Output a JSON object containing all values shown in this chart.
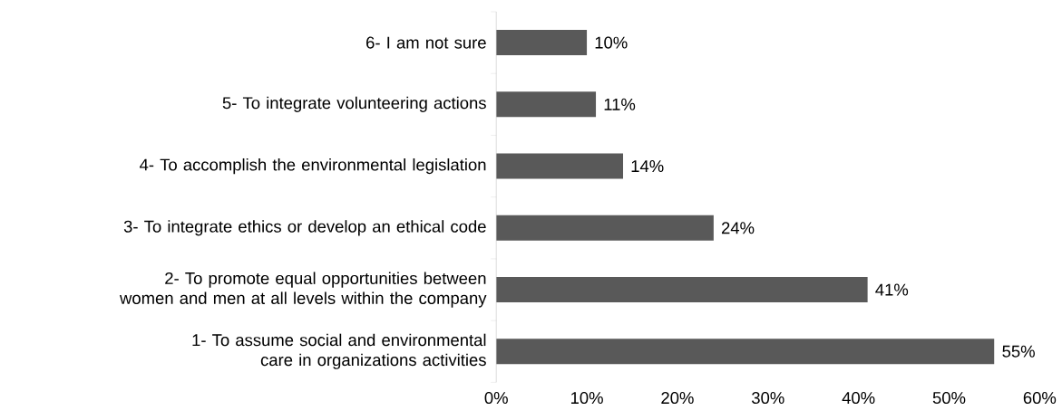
{
  "chart_data": {
    "type": "bar",
    "orientation": "horizontal",
    "categories": [
      "6-  I am not sure",
      "5-  To integrate volunteering actions",
      "4-  To accomplish the environmental legislation",
      "3- To integrate ethics or develop an ethical code",
      "2-  To promote equal opportunities between women and men at all levels within the company",
      "1-  To assume social and environmental care in organizations activities"
    ],
    "values": [
      10,
      11,
      14,
      24,
      41,
      55
    ],
    "value_labels": [
      "10%",
      "11%",
      "14%",
      "24%",
      "41%",
      "55%"
    ],
    "color": "#595959",
    "xlim": [
      0,
      60
    ],
    "xticks": [
      {
        "value": 0,
        "label": "0%"
      },
      {
        "value": 10,
        "label": "10%"
      },
      {
        "value": 20,
        "label": "20%"
      },
      {
        "value": 30,
        "label": "30%"
      },
      {
        "value": 40,
        "label": "40%"
      },
      {
        "value": 50,
        "label": "50%"
      },
      {
        "value": 60,
        "label": "60%"
      }
    ],
    "grid": false
  }
}
